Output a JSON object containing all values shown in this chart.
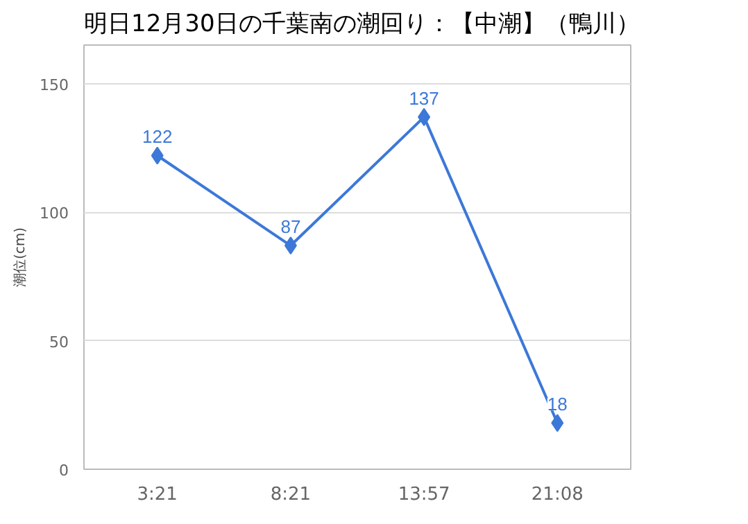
{
  "chart_data": {
    "type": "line",
    "title": "明日12月30日の千葉南の潮回り：【中潮】（鴨川）",
    "ylabel": "潮位(cm)",
    "categories": [
      "3:21",
      "8:21",
      "13:57",
      "21:08"
    ],
    "series": [
      {
        "color": "#3c78d8",
        "values": [
          122,
          87,
          137,
          18
        ]
      }
    ],
    "ylim": [
      0,
      165
    ],
    "yticks": [
      0,
      50,
      100,
      150
    ],
    "grid": "y",
    "marker": "diamond",
    "data_labels": true
  }
}
